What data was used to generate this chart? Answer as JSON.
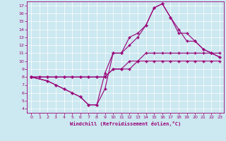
{
  "xlabel": "Windchill (Refroidissement éolien,°C)",
  "bg_color": "#cce8f0",
  "line_color": "#990077",
  "xlim": [
    -0.5,
    23.5
  ],
  "ylim": [
    3.5,
    17.5
  ],
  "xticks": [
    0,
    1,
    2,
    3,
    4,
    5,
    6,
    7,
    8,
    9,
    10,
    11,
    12,
    13,
    14,
    15,
    16,
    17,
    18,
    19,
    20,
    21,
    22,
    23
  ],
  "yticks": [
    4,
    5,
    6,
    7,
    8,
    9,
    10,
    11,
    12,
    13,
    14,
    15,
    16,
    17
  ],
  "lines": [
    {
      "x": [
        0,
        1,
        2,
        3,
        4,
        5,
        6,
        7,
        8,
        9,
        10,
        11,
        12,
        13,
        14,
        15,
        16,
        17,
        18,
        19,
        20,
        21,
        22,
        23
      ],
      "y": [
        8,
        8,
        8,
        8,
        8,
        8,
        8,
        8,
        8,
        8,
        9,
        9,
        9,
        10,
        10,
        10,
        10,
        10,
        10,
        10,
        10,
        10,
        10,
        10
      ]
    },
    {
      "x": [
        0,
        1,
        2,
        3,
        4,
        5,
        6,
        7,
        8,
        9,
        10,
        11,
        12,
        13,
        14,
        15,
        16,
        17,
        18,
        19,
        20,
        21,
        22,
        23
      ],
      "y": [
        8,
        8,
        8,
        8,
        8,
        8,
        8,
        8,
        8,
        8,
        9,
        9,
        10,
        10,
        11,
        11,
        11,
        11,
        11,
        11,
        11,
        11,
        11,
        11
      ]
    },
    {
      "x": [
        0,
        2,
        3,
        4,
        5,
        6,
        7,
        8,
        9,
        10,
        11,
        12,
        13,
        14,
        15,
        16,
        17,
        18,
        19,
        20,
        21,
        22,
        23
      ],
      "y": [
        8,
        7.5,
        7,
        6.5,
        6,
        5.5,
        4.5,
        4.5,
        6.5,
        11,
        11,
        13,
        13.5,
        14.5,
        16.7,
        17.2,
        15.5,
        14,
        12.5,
        12.5,
        11.5,
        11,
        10.5
      ]
    },
    {
      "x": [
        0,
        2,
        3,
        4,
        5,
        6,
        7,
        8,
        9,
        10,
        11,
        12,
        13,
        14,
        15,
        16,
        17,
        18,
        19,
        20,
        21,
        22,
        23
      ],
      "y": [
        8,
        7.5,
        7,
        6.5,
        6,
        5.5,
        4.5,
        4.5,
        8.5,
        11,
        11,
        12,
        13,
        14.5,
        16.7,
        17.2,
        15.5,
        13.5,
        13.5,
        12.5,
        11.5,
        11,
        10.5
      ]
    }
  ]
}
